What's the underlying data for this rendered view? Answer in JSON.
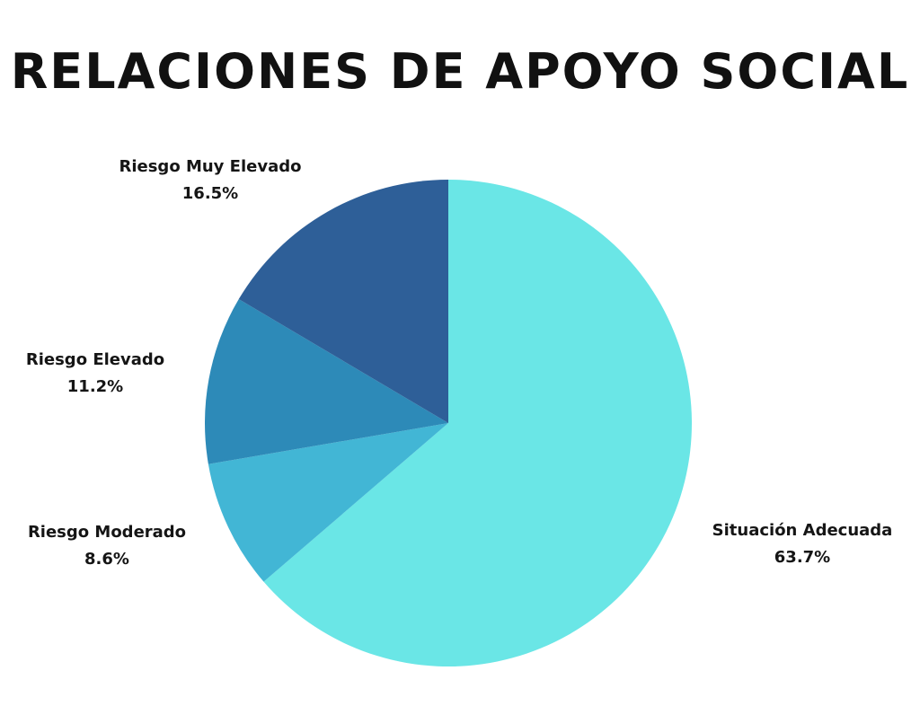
{
  "chart_data": {
    "type": "pie",
    "title": "RELACIONES DE APOYO SOCIAL",
    "start_angle": "12 o'clock",
    "direction": "clockwise",
    "slices": [
      {
        "name": "Situación Adecuada",
        "value": 63.7,
        "label": "63.7%",
        "color": "#6ae6e6"
      },
      {
        "name": "Riesgo Moderado",
        "value": 8.6,
        "label": "8.6%",
        "color": "#42b6d5"
      },
      {
        "name": "Riesgo Elevado",
        "value": 11.2,
        "label": "11.2%",
        "color": "#2d8ab8"
      },
      {
        "name": "Riesgo Muy Elevado",
        "value": 16.5,
        "label": "16.5%",
        "color": "#2e5f98"
      }
    ]
  }
}
